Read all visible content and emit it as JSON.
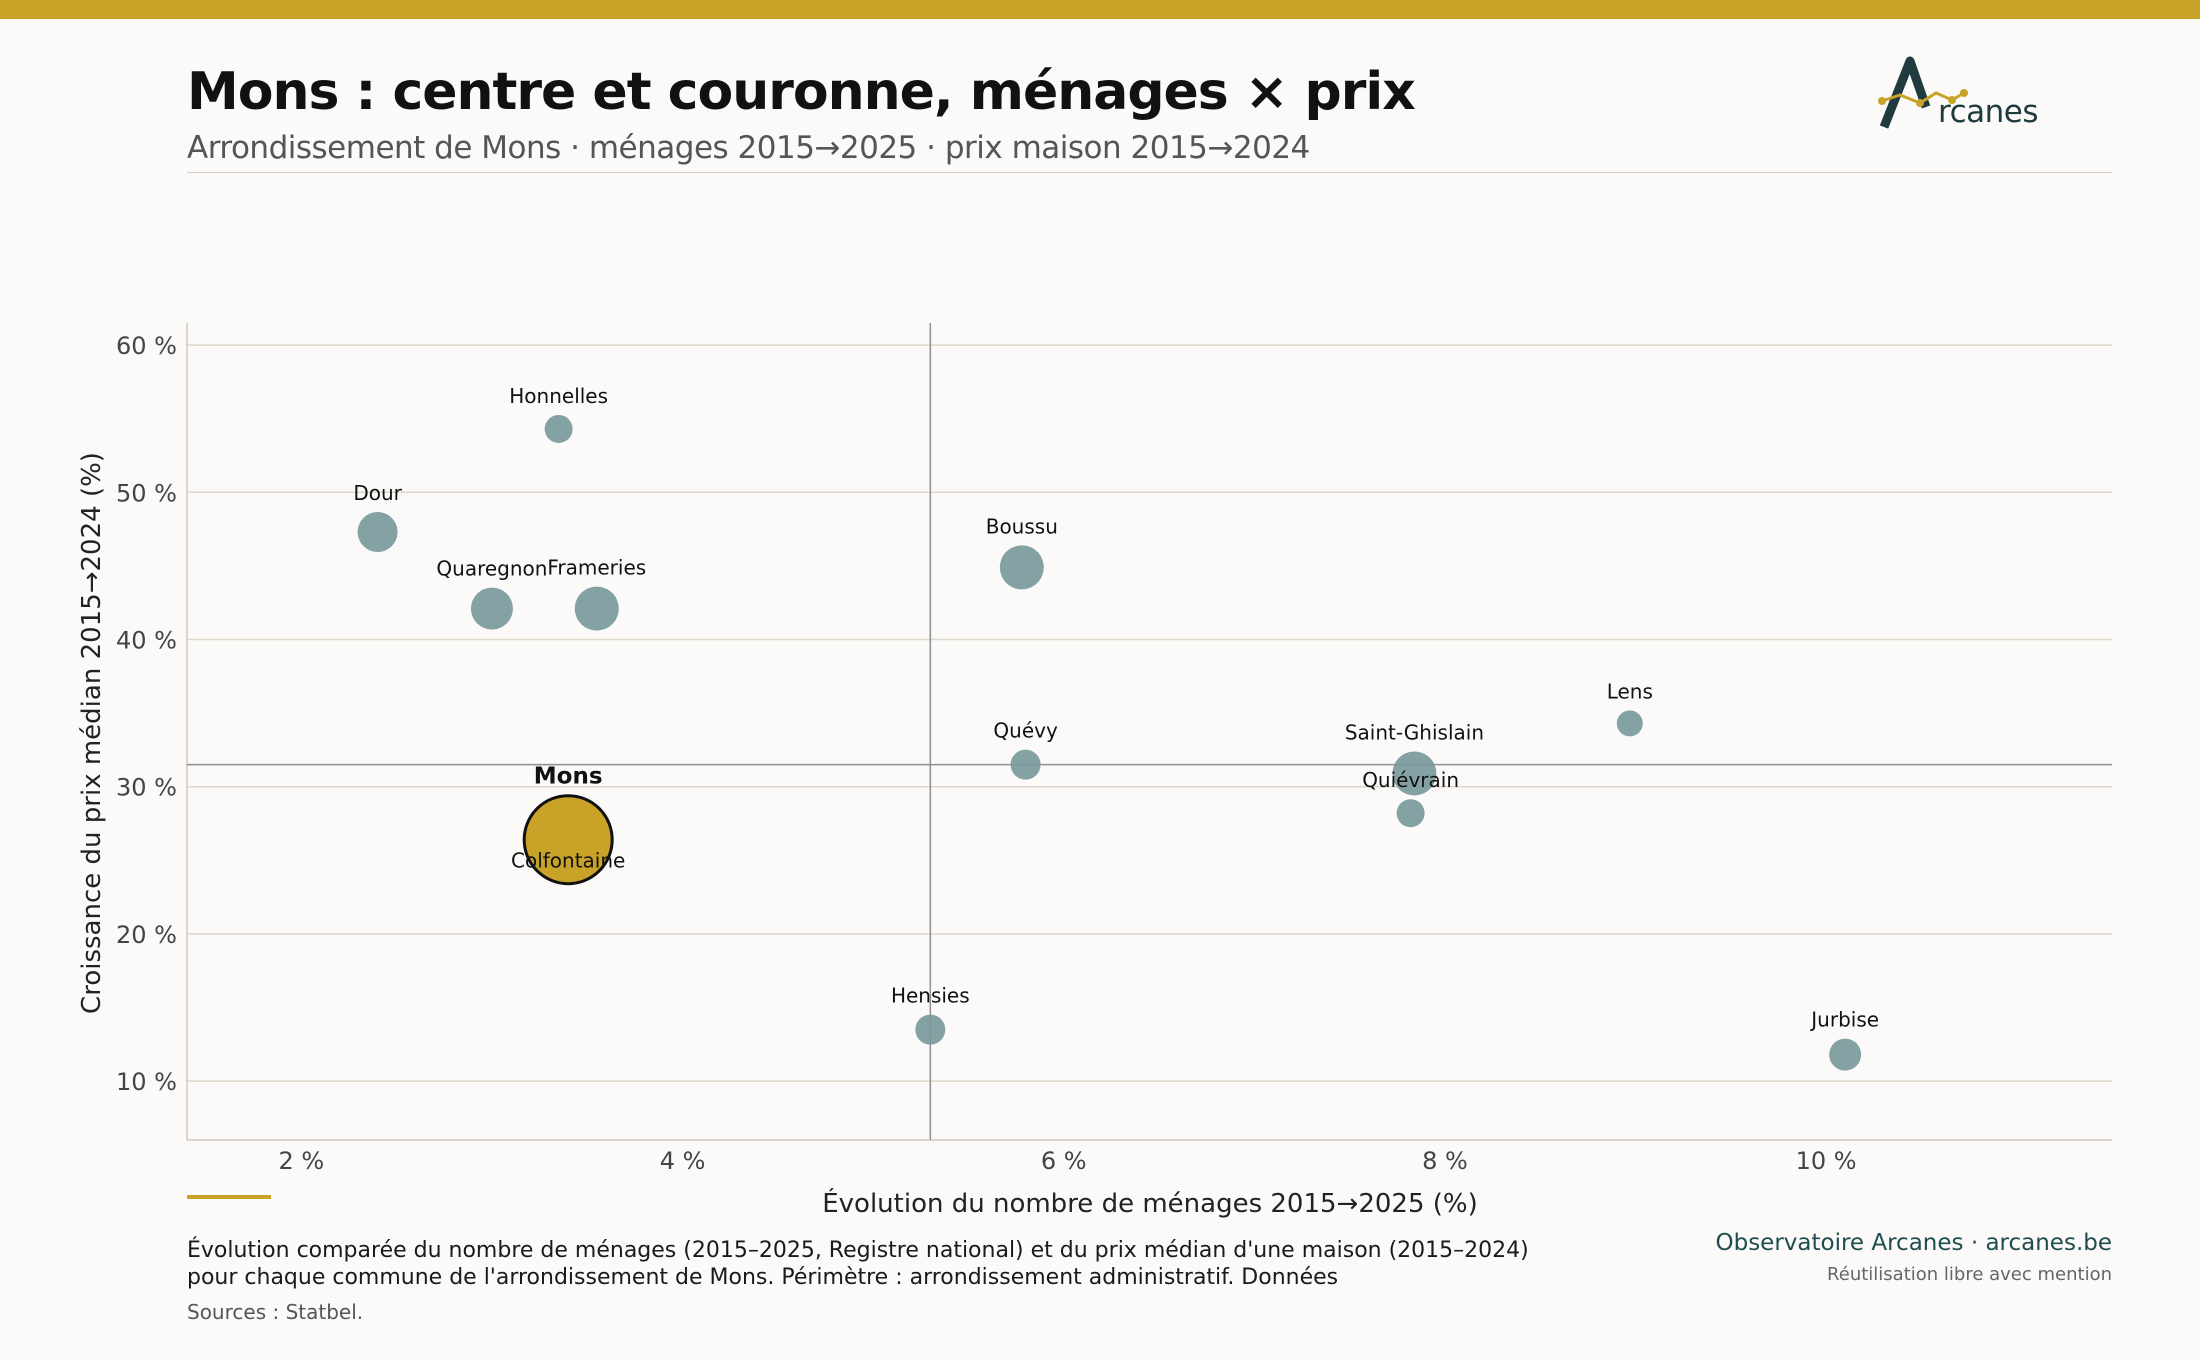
{
  "header": {
    "title": "Mons : centre et couronne, ménages × prix",
    "subtitle": "Arrondissement de Mons · ménages 2015→2025 · prix maison 2015→2024",
    "logo_text": "rcanes"
  },
  "colors": {
    "accent": "#c9a228",
    "bubble": "#7a9a9c",
    "highlight": "#c9a228",
    "brand": "#1f4d4f"
  },
  "chart_data": {
    "type": "scatter",
    "xlabel": "Évolution du nombre de ménages 2015→2025 (%)",
    "ylabel": "Croissance du prix médian 2015→2024 (%)",
    "xlim": [
      1.4,
      11.5
    ],
    "ylim": [
      6,
      61.5
    ],
    "xticks": [
      2,
      4,
      6,
      8,
      10
    ],
    "xtick_labels": [
      "2 %",
      "4 %",
      "6 %",
      "8 %",
      "10 %"
    ],
    "yticks": [
      10,
      20,
      30,
      40,
      50,
      60
    ],
    "ytick_labels": [
      "10 %",
      "20 %",
      "30 %",
      "40 %",
      "50 %",
      "60 %"
    ],
    "grid": "horizontal",
    "reference_lines": {
      "x": 5.3,
      "y": 31.5
    },
    "points": [
      {
        "name": "Honnelles",
        "x": 3.35,
        "y": 54.3,
        "size": 14
      },
      {
        "name": "Dour",
        "x": 2.4,
        "y": 47.3,
        "size": 20
      },
      {
        "name": "Quaregnon",
        "x": 3.0,
        "y": 42.1,
        "size": 21
      },
      {
        "name": "Frameries",
        "x": 3.55,
        "y": 42.1,
        "size": 22
      },
      {
        "name": "Boussu",
        "x": 5.78,
        "y": 44.9,
        "size": 22
      },
      {
        "name": "Quévy",
        "x": 5.8,
        "y": 31.5,
        "size": 15
      },
      {
        "name": "Lens",
        "x": 8.97,
        "y": 34.3,
        "size": 13
      },
      {
        "name": "Saint-Ghislain",
        "x": 7.84,
        "y": 30.9,
        "size": 22
      },
      {
        "name": "Quiévrain",
        "x": 7.82,
        "y": 28.2,
        "size": 14
      },
      {
        "name": "Mons",
        "x": 3.4,
        "y": 26.4,
        "size": 44,
        "highlight": true
      },
      {
        "name": "Colfontaine",
        "x": 3.4,
        "y": 26.4,
        "size": 20
      },
      {
        "name": "Hensies",
        "x": 5.3,
        "y": 13.5,
        "size": 15
      },
      {
        "name": "Jurbise",
        "x": 10.1,
        "y": 11.8,
        "size": 16
      }
    ]
  },
  "footer": {
    "note": "Évolution comparée du nombre de ménages (2015–2025, Registre national) et du prix médian d'une maison (2015–2024) pour chaque commune de l'arrondissement de Mons. Périmètre : arrondissement administratif. Données",
    "sources": "Sources : Statbel.",
    "brand": "Observatoire Arcanes · arcanes.be",
    "reuse": "Réutilisation libre avec mention"
  }
}
